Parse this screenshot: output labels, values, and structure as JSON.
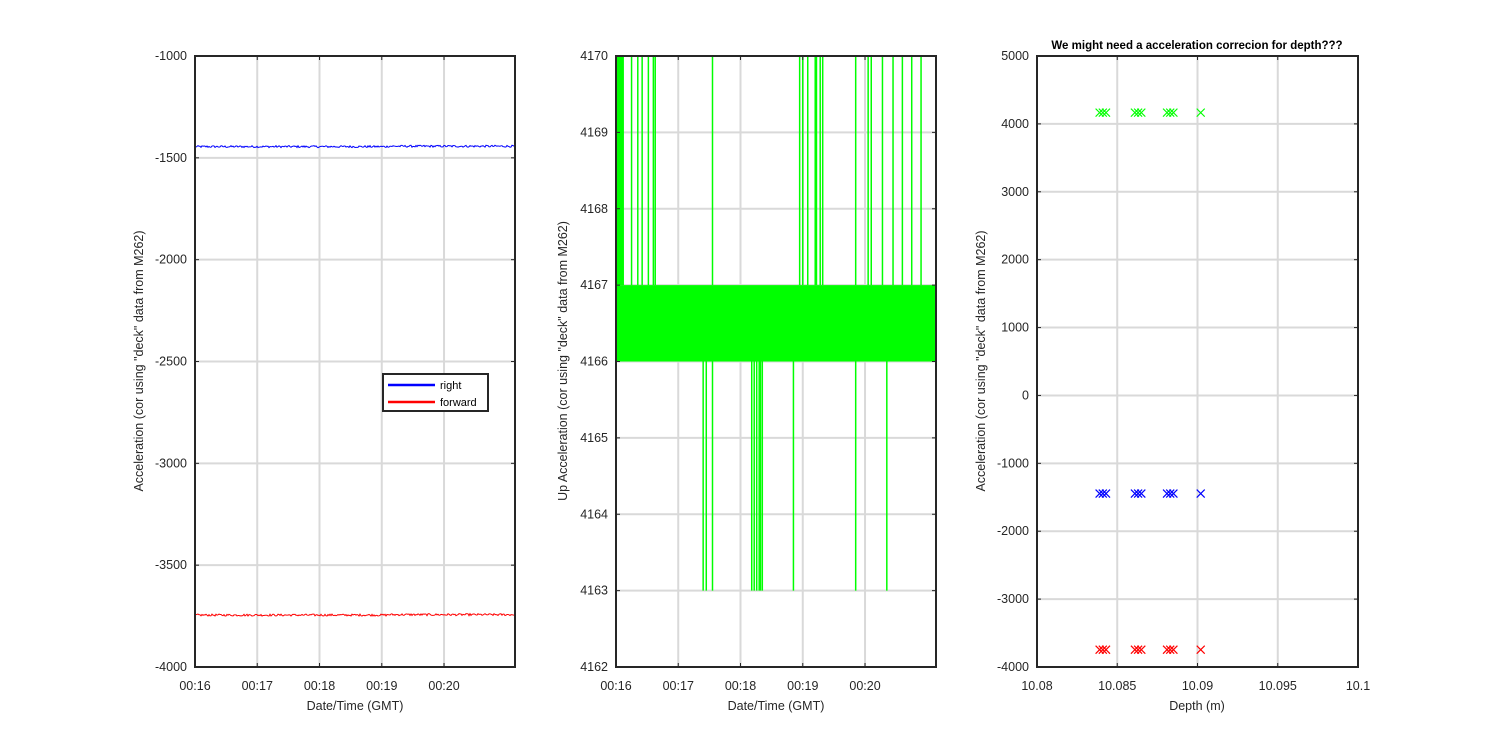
{
  "chart_data": [
    {
      "type": "line",
      "title": "",
      "xlabel": "Date/Time (GMT)",
      "ylabel": "Acceleration (cor using \"deck\" data from M262)",
      "x_ticks": [
        "00:16",
        "00:17",
        "00:18",
        "00:19",
        "00:20"
      ],
      "x_range_minutes": [
        0,
        5
      ],
      "ylim": [
        -4000,
        -1000
      ],
      "y_ticks": [
        -4000,
        -3500,
        -3000,
        -2500,
        -2000,
        -1500,
        -1000
      ],
      "grid": true,
      "legend": {
        "placement": "center-right",
        "entries": [
          "right",
          "forward"
        ]
      },
      "series": [
        {
          "name": "right",
          "color": "#0000ff",
          "level": -1445,
          "noise": 5
        },
        {
          "name": "forward",
          "color": "#ff0000",
          "level": -3745,
          "noise": 5
        }
      ]
    },
    {
      "type": "line",
      "title": "",
      "xlabel": "Date/Time (GMT)",
      "ylabel": "Up Acceleration (cor using \"deck\" data from M262)",
      "x_ticks": [
        "00:16",
        "00:17",
        "00:18",
        "00:19",
        "00:20"
      ],
      "x_range_minutes": [
        0,
        5
      ],
      "ylim": [
        4162,
        4170
      ],
      "y_ticks": [
        4162,
        4163,
        4164,
        4165,
        4166,
        4167,
        4168,
        4169,
        4170
      ],
      "grid": true,
      "series": [
        {
          "color": "#00ff00",
          "band_low": 4166,
          "band_high": 4167,
          "spikes_up_minutes": [
            0.05,
            0.1,
            0.25,
            0.35,
            0.42,
            0.52,
            0.6,
            0.63,
            1.55,
            2.95,
            3.0,
            3.08,
            3.2,
            3.22,
            3.28,
            3.32,
            3.85,
            4.05,
            4.1,
            4.28,
            4.45,
            4.6,
            4.75,
            4.9
          ],
          "spikes_up_max": 4170,
          "spikes_down_minutes": [
            1.4,
            1.45,
            1.55,
            2.18,
            2.22,
            2.26,
            2.3,
            2.32,
            2.35,
            2.85,
            3.85,
            4.35
          ],
          "spikes_down_min": 4163
        }
      ]
    },
    {
      "type": "scatter",
      "title": "We might need a acceleration correcion for depth???",
      "xlabel": "Depth (m)",
      "ylabel": "Acceleration (cor using \"deck\" data from M262)",
      "xlim": [
        10.08,
        10.1
      ],
      "x_ticks": [
        "10.08",
        "10.085",
        "10.09",
        "10.095",
        "10.1"
      ],
      "ylim": [
        -4000,
        5000
      ],
      "y_ticks": [
        -4000,
        -3000,
        -2000,
        -1000,
        0,
        1000,
        2000,
        3000,
        4000,
        5000
      ],
      "grid": true,
      "marker": "x",
      "series": [
        {
          "color": "#00ff00",
          "y": 4166,
          "x": [
            10.0839,
            10.0841,
            10.0843,
            10.0861,
            10.0863,
            10.0865,
            10.0881,
            10.0883,
            10.0885,
            10.0902
          ]
        },
        {
          "color": "#0000ff",
          "y": -1445,
          "x": [
            10.0839,
            10.0841,
            10.0843,
            10.0861,
            10.0863,
            10.0865,
            10.0881,
            10.0883,
            10.0885,
            10.0902
          ]
        },
        {
          "color": "#ff0000",
          "y": -3745,
          "x": [
            10.0839,
            10.0841,
            10.0843,
            10.0861,
            10.0863,
            10.0865,
            10.0881,
            10.0883,
            10.0885,
            10.0902
          ]
        }
      ]
    }
  ]
}
